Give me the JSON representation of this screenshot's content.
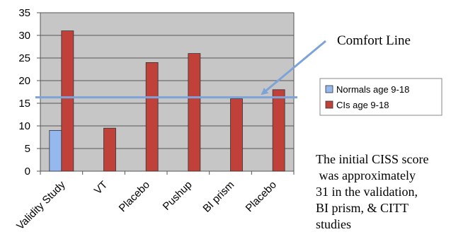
{
  "chart_data": {
    "type": "bar",
    "categories": [
      "Validity Study",
      "VT",
      "Placebo",
      "Pushup",
      "BI prism",
      "Placebo"
    ],
    "series": [
      {
        "name": "Normals age 9-18",
        "color": "#95b8ef",
        "values": [
          9,
          null,
          null,
          null,
          null,
          null
        ]
      },
      {
        "name": "CIs age 9-18",
        "color": "#c0403a",
        "values": [
          31,
          9.5,
          24,
          26,
          16,
          18
        ]
      }
    ],
    "ylim": [
      0,
      35
    ],
    "yticks": [
      0,
      5,
      10,
      15,
      20,
      25,
      30,
      35
    ],
    "grid": true,
    "plot_background": "#c6c6c6",
    "legend_placement": "right",
    "reference_line": {
      "label": "Comfort Line",
      "value": 16.3,
      "color": "#7da3d8"
    }
  },
  "side_note": {
    "lines": [
      "The initial CISS score",
      " was approximately",
      "31 in the validation,",
      "BI prism, & CITT",
      "studies"
    ]
  }
}
